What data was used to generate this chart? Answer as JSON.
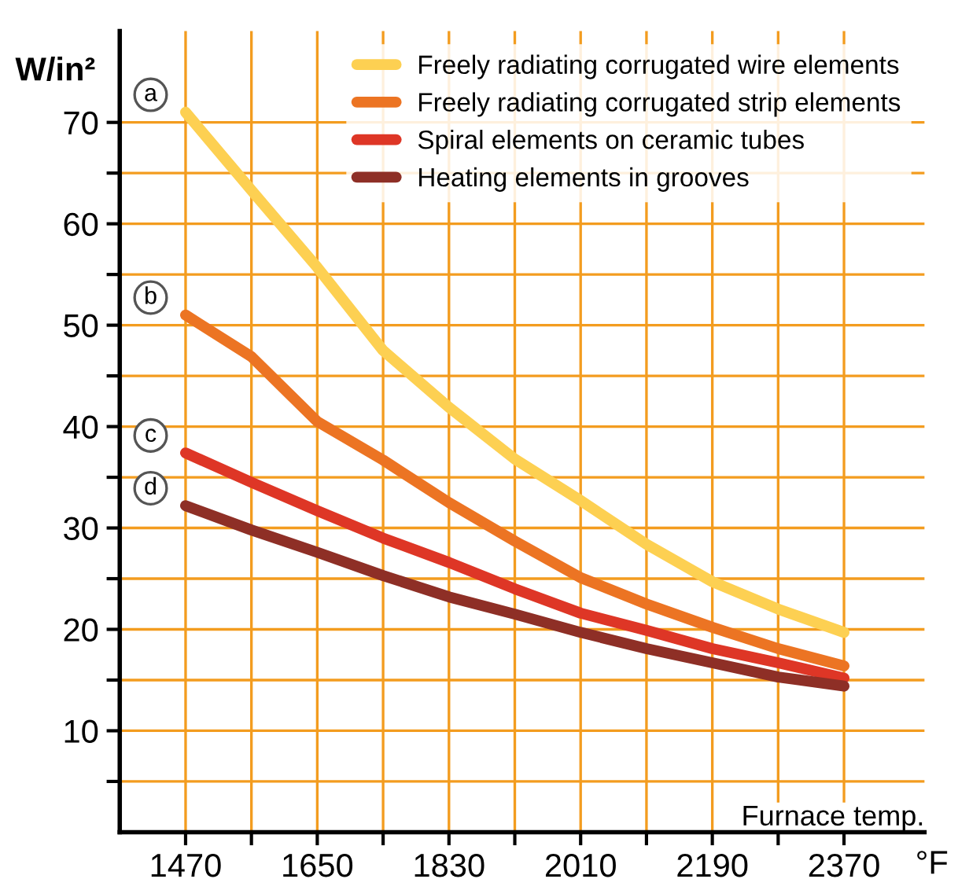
{
  "chart_data": {
    "type": "line",
    "xlabel": "Furnace temp.",
    "ylabel": "W/in²",
    "x": [
      1470,
      1560,
      1650,
      1740,
      1830,
      1920,
      2010,
      2100,
      2190,
      2280,
      2370
    ],
    "series": [
      {
        "name": "Freely radiating corrugated wire elements",
        "color": "#fdd052",
        "values": [
          71,
          63.3,
          55.7,
          47.5,
          41.9,
          36.8,
          32.7,
          28.4,
          24.7,
          22,
          19.7
        ]
      },
      {
        "name": "Freely radiating corrugated strip elements",
        "color": "#ec7423",
        "values": [
          51,
          46.9,
          40.5,
          36.7,
          32.5,
          28.7,
          25.1,
          22.5,
          20.2,
          18.1,
          16.4
        ]
      },
      {
        "name": "Spiral elements on ceramic tubes",
        "color": "#de3626",
        "values": [
          37.4,
          34.5,
          31.7,
          29,
          26.6,
          24,
          21.6,
          19.9,
          18.1,
          16.7,
          15.2
        ]
      },
      {
        "name": "Heating elements in grooves",
        "color": "#8e2f26",
        "values": [
          32.2,
          29.8,
          27.6,
          25.3,
          23.2,
          21.5,
          19.7,
          18.1,
          16.7,
          15.3,
          14.4
        ]
      }
    ],
    "annotations": [
      "a",
      "b",
      "c",
      "d",
      "°F"
    ],
    "xlim": [
      1380,
      2480
    ],
    "ylim": [
      0,
      79
    ],
    "xticks": [
      1470,
      {
        "value": 1560,
        "label": null
      },
      1650,
      {
        "value": 1740,
        "label": null
      },
      1830,
      {
        "value": 1920,
        "label": null
      },
      2010,
      {
        "value": 2100,
        "label": null
      },
      2190,
      {
        "value": 2280,
        "label": null
      },
      2370
    ],
    "yticks": [
      {
        "value": 5,
        "label": null
      },
      10,
      {
        "value": 15,
        "label": null
      },
      20,
      {
        "value": 25,
        "label": null
      },
      30,
      {
        "value": 35,
        "label": null
      },
      40,
      {
        "value": 45,
        "label": null
      },
      50,
      {
        "value": 55,
        "label": null
      },
      60,
      {
        "value": 65,
        "label": null
      },
      70
    ],
    "grid": true,
    "legend": "top right",
    "marker": "none",
    "line_style": "solid"
  }
}
